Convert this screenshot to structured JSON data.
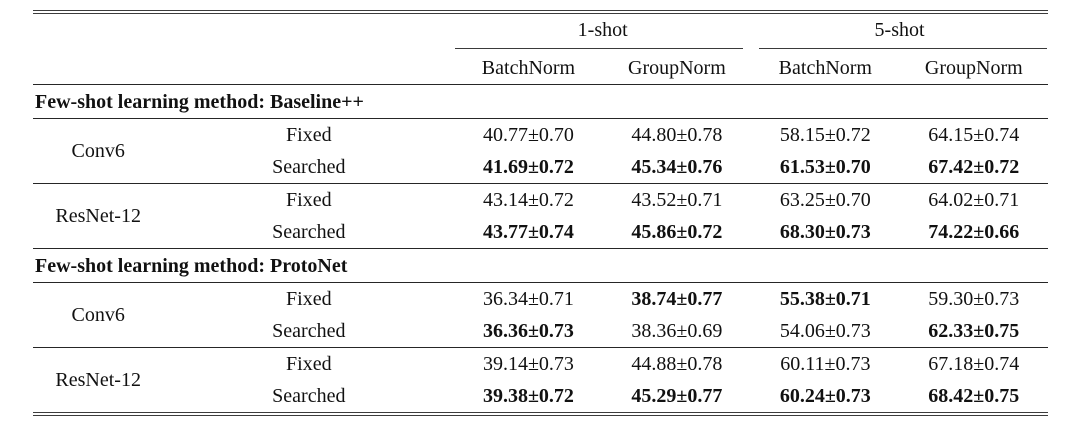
{
  "page": {
    "background": "#ffffff",
    "text_color": "#111111",
    "rule_color": "#262626"
  },
  "table": {
    "group_headers": [
      {
        "label": "1-shot"
      },
      {
        "label": "5-shot"
      }
    ],
    "sub_headers": [
      "BatchNorm",
      "GroupNorm",
      "BatchNorm",
      "GroupNorm"
    ],
    "sections": [
      {
        "title": "Few-shot learning method: Baseline++",
        "blocks": [
          {
            "arch": "Conv6",
            "rows": [
              {
                "variant": "Fixed",
                "values": [
                  "40.77±0.70",
                  "44.80±0.78",
                  "58.15±0.72",
                  "64.15±0.74"
                ],
                "bold": [
                  false,
                  false,
                  false,
                  false
                ]
              },
              {
                "variant": "Searched",
                "values": [
                  "41.69±0.72",
                  "45.34±0.76",
                  "61.53±0.70",
                  "67.42±0.72"
                ],
                "bold": [
                  true,
                  true,
                  true,
                  true
                ]
              }
            ]
          },
          {
            "arch": "ResNet-12",
            "rows": [
              {
                "variant": "Fixed",
                "values": [
                  "43.14±0.72",
                  "43.52±0.71",
                  "63.25±0.70",
                  "64.02±0.71"
                ],
                "bold": [
                  false,
                  false,
                  false,
                  false
                ]
              },
              {
                "variant": "Searched",
                "values": [
                  "43.77±0.74",
                  "45.86±0.72",
                  "68.30±0.73",
                  "74.22±0.66"
                ],
                "bold": [
                  true,
                  true,
                  true,
                  true
                ]
              }
            ]
          }
        ]
      },
      {
        "title": "Few-shot learning method: ProtoNet",
        "blocks": [
          {
            "arch": "Conv6",
            "rows": [
              {
                "variant": "Fixed",
                "values": [
                  "36.34±0.71",
                  "38.74±0.77",
                  "55.38±0.71",
                  "59.30±0.73"
                ],
                "bold": [
                  false,
                  true,
                  true,
                  false
                ]
              },
              {
                "variant": "Searched",
                "values": [
                  "36.36±0.73",
                  "38.36±0.69",
                  "54.06±0.73",
                  "62.33±0.75"
                ],
                "bold": [
                  true,
                  false,
                  false,
                  true
                ]
              }
            ]
          },
          {
            "arch": "ResNet-12",
            "rows": [
              {
                "variant": "Fixed",
                "values": [
                  "39.14±0.73",
                  "44.88±0.78",
                  "60.11±0.73",
                  "67.18±0.74"
                ],
                "bold": [
                  false,
                  false,
                  false,
                  false
                ]
              },
              {
                "variant": "Searched",
                "values": [
                  "39.38±0.72",
                  "45.29±0.77",
                  "60.24±0.73",
                  "68.42±0.75"
                ],
                "bold": [
                  true,
                  true,
                  true,
                  true
                ]
              }
            ]
          }
        ]
      }
    ]
  }
}
